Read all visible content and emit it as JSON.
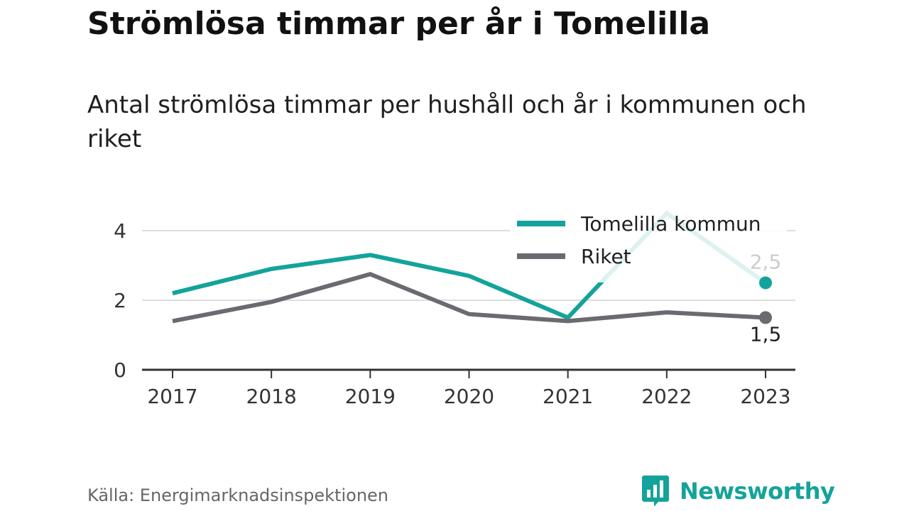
{
  "header": {
    "title": "Strömlösa timmar per år i Tomelilla",
    "subtitle": "Antal strömlösa timmar per hushåll och år i kommunen och riket"
  },
  "footer": {
    "source": "Källa: Energimarknadsinspektionen",
    "logo_text": "Newsworthy",
    "logo_icon": "bar-chart-speech-bubble-icon"
  },
  "colors": {
    "tomelilla": "#14a39a",
    "riket": "#6b6a70",
    "grid": "#dddddd",
    "axis": "#333333",
    "label_faded": "#cccccc",
    "label_dark": "#1f1f1f"
  },
  "chart_data": {
    "type": "line",
    "title": "Strömlösa timmar per år i Tomelilla",
    "subtitle": "Antal strömlösa timmar per hushåll och år i kommunen och riket",
    "x": [
      "2017",
      "2018",
      "2019",
      "2020",
      "2021",
      "2022",
      "2023"
    ],
    "series": [
      {
        "name": "Tomelilla kommun",
        "values": [
          2.2,
          2.9,
          3.3,
          2.7,
          1.5,
          4.5,
          2.5
        ],
        "end_label": "2,5"
      },
      {
        "name": "Riket",
        "values": [
          1.4,
          1.95,
          2.75,
          1.6,
          1.4,
          1.65,
          1.5
        ],
        "end_label": "1,5"
      }
    ],
    "yticks": [
      "0",
      "2",
      "4"
    ],
    "ylim": [
      0,
      5
    ],
    "grid": true,
    "legend_position": "top-right"
  }
}
